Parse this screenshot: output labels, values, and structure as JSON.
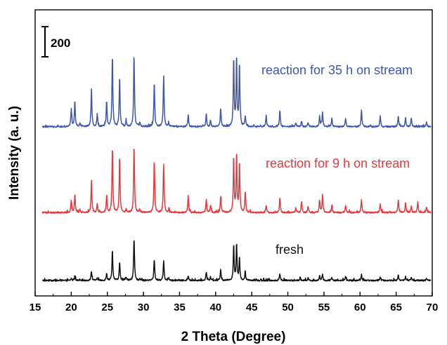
{
  "chart_data": {
    "type": "line",
    "xlabel": "2 Theta (Degree)",
    "ylabel": "Intensity (a. u.)",
    "xlim": [
      15,
      70
    ],
    "x_ticks": [
      15,
      20,
      25,
      30,
      35,
      40,
      45,
      50,
      55,
      60,
      65,
      70
    ],
    "y_ticks_shown": false,
    "scale_bar": {
      "label": "200",
      "value": 200
    },
    "offset_ylim": [
      0,
      1600
    ],
    "series": [
      {
        "name": "fresh",
        "color": "#111111",
        "offset": 0,
        "peaks": [
          {
            "x": 20.0,
            "y": 12
          },
          {
            "x": 20.5,
            "y": 28
          },
          {
            "x": 21.2,
            "y": 10
          },
          {
            "x": 22.8,
            "y": 62
          },
          {
            "x": 23.6,
            "y": 18
          },
          {
            "x": 24.9,
            "y": 50
          },
          {
            "x": 25.7,
            "y": 205
          },
          {
            "x": 26.7,
            "y": 120
          },
          {
            "x": 27.6,
            "y": 22
          },
          {
            "x": 28.7,
            "y": 278
          },
          {
            "x": 29.5,
            "y": 12
          },
          {
            "x": 31.5,
            "y": 145
          },
          {
            "x": 32.8,
            "y": 132
          },
          {
            "x": 33.5,
            "y": 15
          },
          {
            "x": 36.2,
            "y": 28
          },
          {
            "x": 38.7,
            "y": 58
          },
          {
            "x": 39.3,
            "y": 18
          },
          {
            "x": 40.7,
            "y": 68
          },
          {
            "x": 42.5,
            "y": 235
          },
          {
            "x": 42.9,
            "y": 240
          },
          {
            "x": 43.3,
            "y": 150
          },
          {
            "x": 44.1,
            "y": 48
          },
          {
            "x": 48.9,
            "y": 40
          },
          {
            "x": 51.7,
            "y": 22
          },
          {
            "x": 52.8,
            "y": 18
          },
          {
            "x": 54.4,
            "y": 28
          },
          {
            "x": 54.8,
            "y": 38
          },
          {
            "x": 56.1,
            "y": 22
          },
          {
            "x": 58.0,
            "y": 24
          },
          {
            "x": 60.2,
            "y": 40
          },
          {
            "x": 62.8,
            "y": 22
          },
          {
            "x": 65.3,
            "y": 38
          },
          {
            "x": 66.3,
            "y": 26
          },
          {
            "x": 67.1,
            "y": 18
          },
          {
            "x": 69.2,
            "y": 14
          }
        ]
      },
      {
        "name": "reaction for 9 h on stream",
        "color": "#e8383d",
        "offset": 450,
        "peaks": [
          {
            "x": 20.0,
            "y": 85
          },
          {
            "x": 20.5,
            "y": 125
          },
          {
            "x": 21.2,
            "y": 20
          },
          {
            "x": 22.8,
            "y": 215
          },
          {
            "x": 23.6,
            "y": 60
          },
          {
            "x": 24.9,
            "y": 115
          },
          {
            "x": 25.7,
            "y": 440
          },
          {
            "x": 26.7,
            "y": 380
          },
          {
            "x": 27.6,
            "y": 25
          },
          {
            "x": 28.7,
            "y": 450
          },
          {
            "x": 29.5,
            "y": 20
          },
          {
            "x": 31.5,
            "y": 352
          },
          {
            "x": 32.8,
            "y": 325
          },
          {
            "x": 33.5,
            "y": 20
          },
          {
            "x": 36.2,
            "y": 110
          },
          {
            "x": 38.7,
            "y": 88
          },
          {
            "x": 39.3,
            "y": 50
          },
          {
            "x": 40.7,
            "y": 112
          },
          {
            "x": 42.5,
            "y": 370
          },
          {
            "x": 42.9,
            "y": 390
          },
          {
            "x": 43.3,
            "y": 330
          },
          {
            "x": 44.1,
            "y": 140
          },
          {
            "x": 47.0,
            "y": 45
          },
          {
            "x": 48.9,
            "y": 100
          },
          {
            "x": 51.1,
            "y": 30
          },
          {
            "x": 51.9,
            "y": 75
          },
          {
            "x": 52.8,
            "y": 38
          },
          {
            "x": 54.4,
            "y": 80
          },
          {
            "x": 54.8,
            "y": 118
          },
          {
            "x": 56.1,
            "y": 52
          },
          {
            "x": 58.0,
            "y": 52
          },
          {
            "x": 60.2,
            "y": 88
          },
          {
            "x": 62.8,
            "y": 62
          },
          {
            "x": 65.3,
            "y": 88
          },
          {
            "x": 66.3,
            "y": 65
          },
          {
            "x": 67.1,
            "y": 45
          },
          {
            "x": 68.0,
            "y": 70
          },
          {
            "x": 69.2,
            "y": 40
          }
        ]
      },
      {
        "name": "reaction for 35 h on stream",
        "color": "#3d56b0",
        "offset": 1020,
        "peaks": [
          {
            "x": 20.0,
            "y": 118
          },
          {
            "x": 20.5,
            "y": 170
          },
          {
            "x": 21.2,
            "y": 22
          },
          {
            "x": 22.8,
            "y": 255
          },
          {
            "x": 23.6,
            "y": 80
          },
          {
            "x": 24.9,
            "y": 175
          },
          {
            "x": 25.7,
            "y": 480
          },
          {
            "x": 26.7,
            "y": 330
          },
          {
            "x": 27.6,
            "y": 35
          },
          {
            "x": 28.7,
            "y": 480
          },
          {
            "x": 29.5,
            "y": 25
          },
          {
            "x": 31.5,
            "y": 300
          },
          {
            "x": 32.8,
            "y": 340
          },
          {
            "x": 33.5,
            "y": 25
          },
          {
            "x": 36.2,
            "y": 78
          },
          {
            "x": 38.7,
            "y": 85
          },
          {
            "x": 39.3,
            "y": 40
          },
          {
            "x": 40.7,
            "y": 125
          },
          {
            "x": 42.5,
            "y": 450
          },
          {
            "x": 42.9,
            "y": 460
          },
          {
            "x": 43.3,
            "y": 420
          },
          {
            "x": 44.1,
            "y": 72
          },
          {
            "x": 47.0,
            "y": 75
          },
          {
            "x": 48.9,
            "y": 110
          },
          {
            "x": 51.1,
            "y": 28
          },
          {
            "x": 51.9,
            "y": 38
          },
          {
            "x": 52.8,
            "y": 28
          },
          {
            "x": 54.4,
            "y": 68
          },
          {
            "x": 54.8,
            "y": 98
          },
          {
            "x": 56.1,
            "y": 60
          },
          {
            "x": 58.0,
            "y": 55
          },
          {
            "x": 60.2,
            "y": 115
          },
          {
            "x": 62.8,
            "y": 70
          },
          {
            "x": 65.3,
            "y": 75
          },
          {
            "x": 66.3,
            "y": 62
          },
          {
            "x": 67.1,
            "y": 55
          },
          {
            "x": 69.2,
            "y": 28
          }
        ]
      }
    ]
  }
}
